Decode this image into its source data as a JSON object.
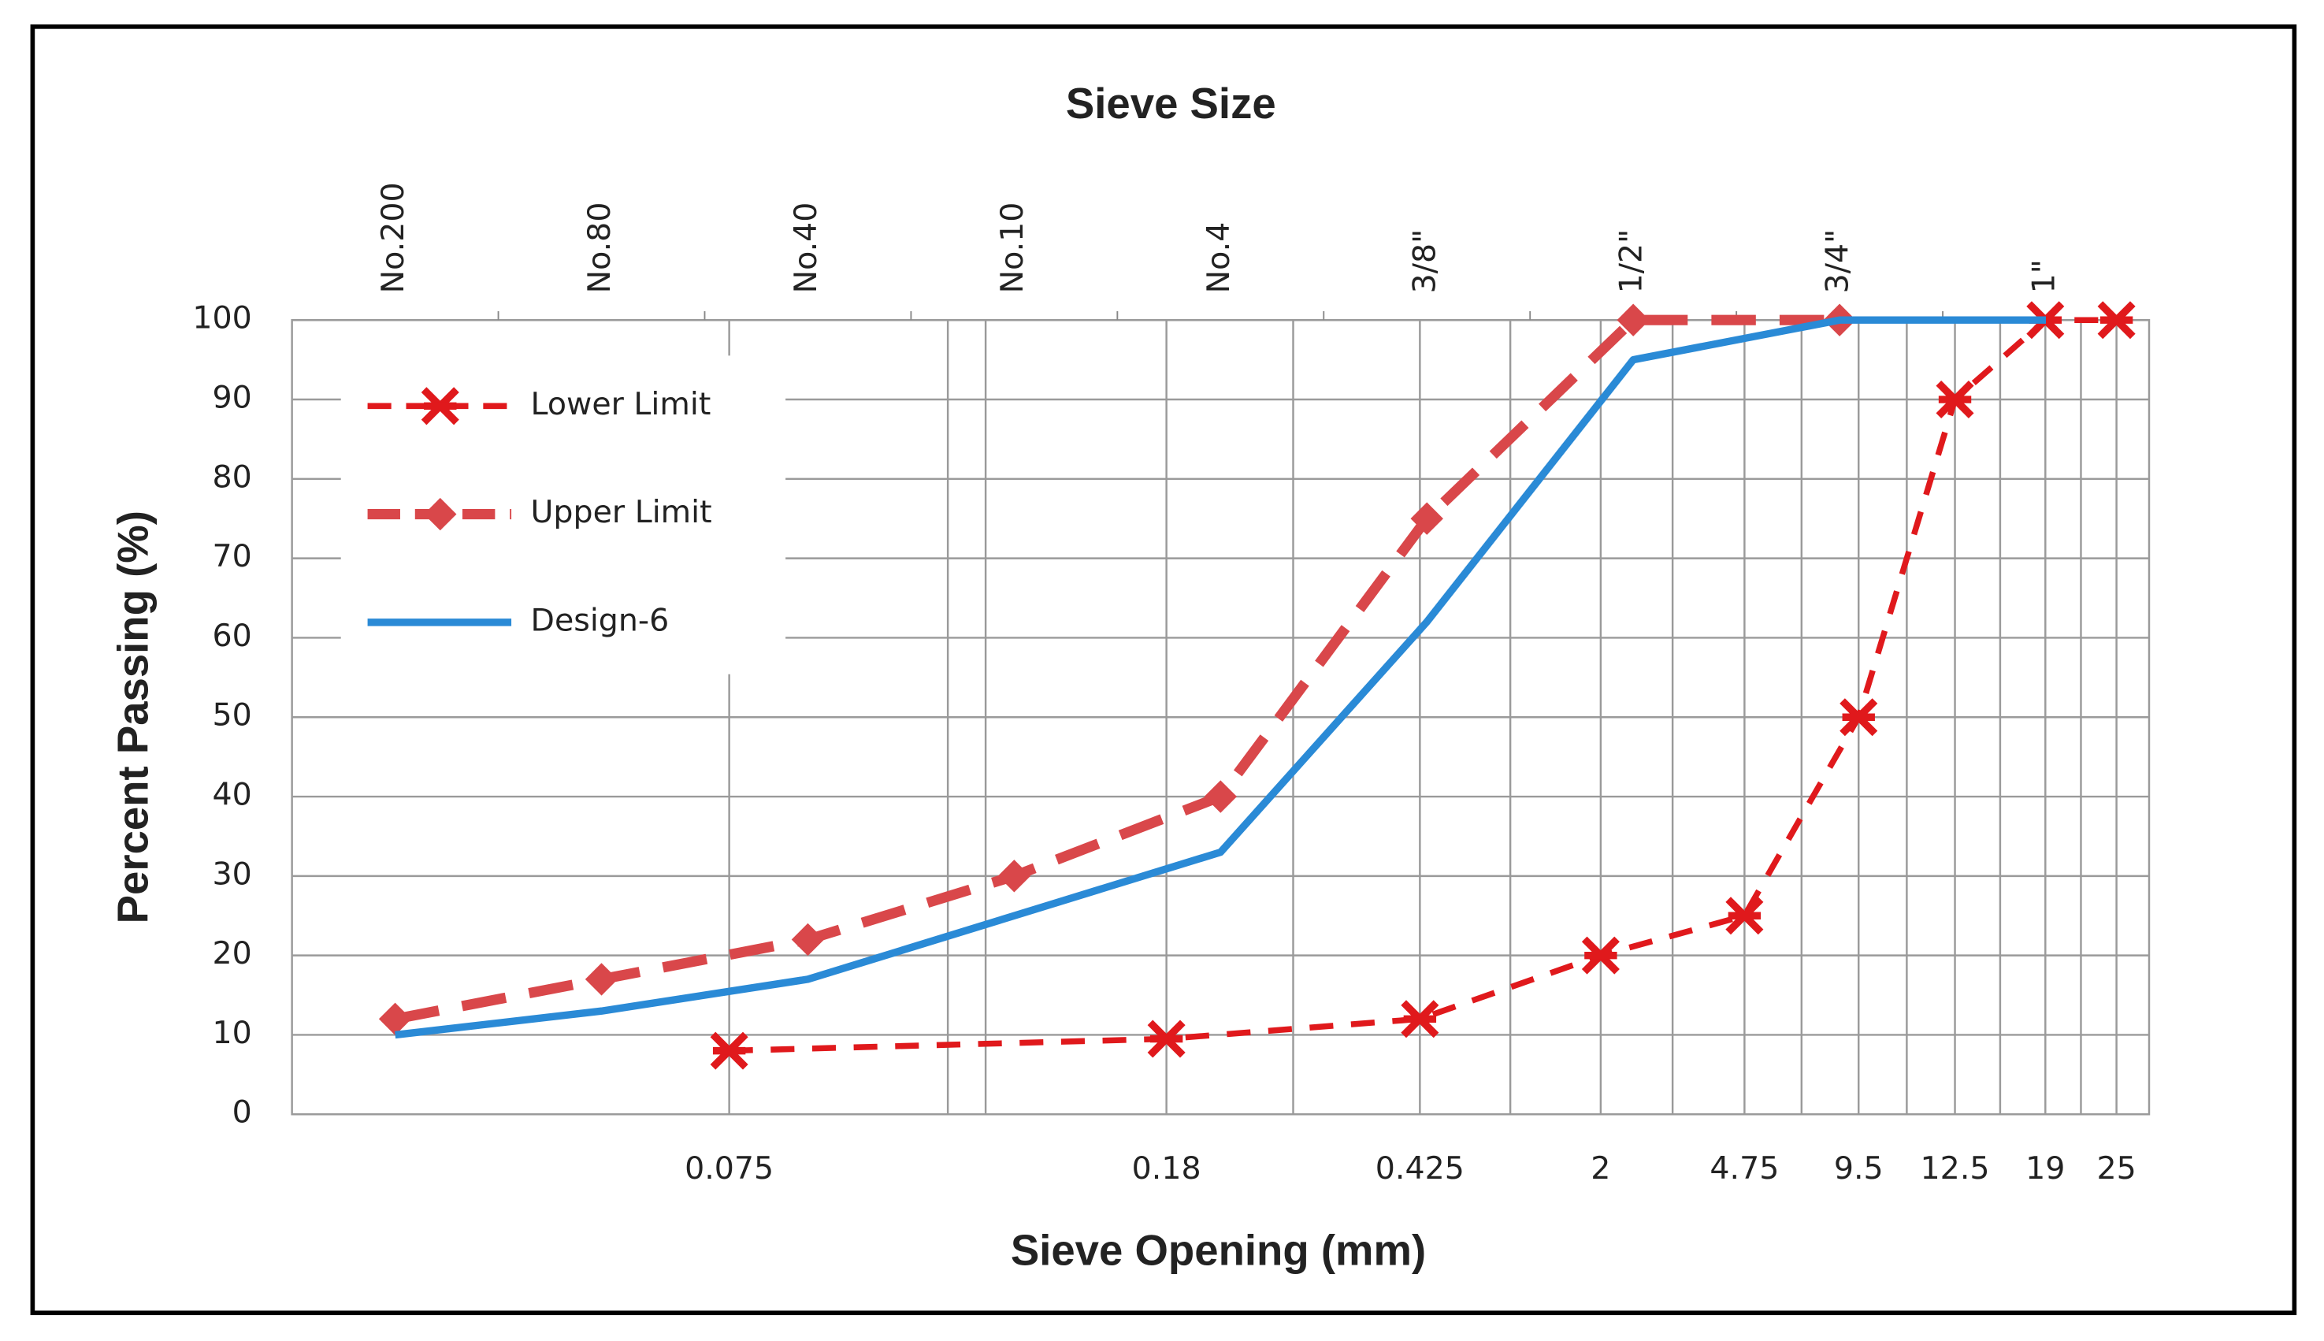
{
  "chart_data": {
    "type": "line",
    "x2_label": "Sieve Size",
    "x_label": "Sieve Opening (mm)",
    "y_label": "Percent Passing (%)",
    "top_categories": [
      "No.200",
      "No.80",
      "No.40",
      "No.10",
      "No.4",
      "3/8\"",
      "1/2\"",
      "3/4\"",
      "1\""
    ],
    "bottom_categories": [
      "0.075",
      "0.18",
      "0.425",
      "2",
      "4.75",
      "9.5",
      "12.5",
      "19",
      "25"
    ],
    "ylim": [
      0,
      100
    ],
    "yticks": [
      0,
      10,
      20,
      30,
      40,
      50,
      60,
      70,
      80,
      90,
      100
    ],
    "grid": true,
    "legend": "upper-left",
    "series": [
      {
        "name": "Lower Limit",
        "color": "#e0191c",
        "axis": "bottom",
        "values": [
          8,
          9.5,
          12,
          20,
          25,
          50,
          90,
          100,
          100
        ]
      },
      {
        "name": "Upper Limit",
        "color": "#d9474a",
        "axis": "top",
        "values": [
          12,
          17,
          22,
          30,
          40,
          75,
          100,
          100,
          null
        ]
      },
      {
        "name": "Design-6",
        "color": "#2a8ad6",
        "axis": "top",
        "values": [
          10,
          13,
          17,
          25,
          33,
          62,
          95,
          100,
          100
        ]
      }
    ]
  }
}
